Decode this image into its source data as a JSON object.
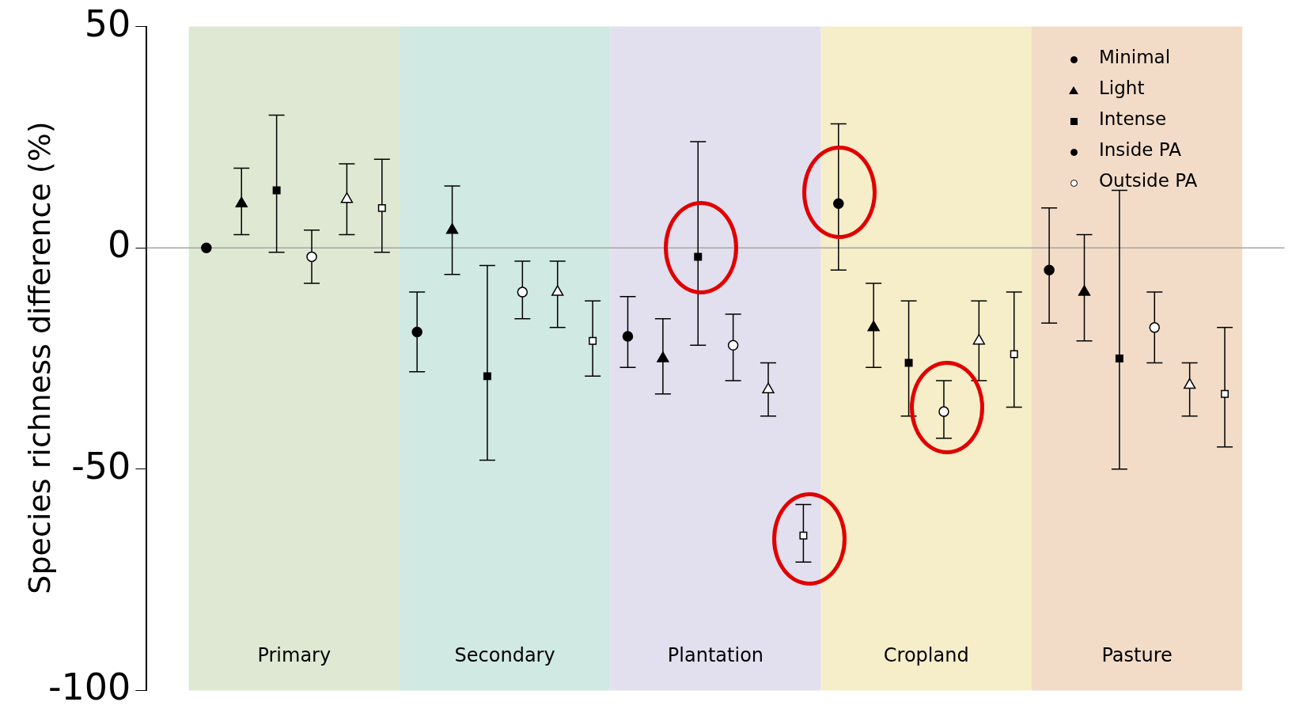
{
  "chart_data": {
    "type": "scatter",
    "ylabel": "Species richness difference (%)",
    "categories": [
      "Primary",
      "Secondary",
      "Plantation",
      "Cropland",
      "Pasture"
    ],
    "ylim": [
      -100,
      50
    ],
    "yticks": [
      50,
      0,
      -50,
      -100
    ],
    "grid": false,
    "legend": "top right",
    "series": [
      {
        "name": "Minimal",
        "color": "#000000",
        "marker": "circle",
        "values": [
          0,
          -19,
          -20,
          10,
          -5
        ],
        "errors": [
          null,
          [
            -28,
            -10
          ],
          [
            -27,
            -11
          ],
          [
            -5,
            28
          ],
          [
            -17,
            9
          ]
        ]
      },
      {
        "name": "Light",
        "color": "#000000",
        "marker": "triangle",
        "values": [
          10,
          4,
          -25,
          -18,
          -10
        ],
        "errors": [
          [
            3,
            18
          ],
          [
            -6,
            14
          ],
          [
            -33,
            -16
          ],
          [
            -27,
            -8
          ],
          [
            -21,
            3
          ]
        ]
      },
      {
        "name": "Intense",
        "color": "#000000",
        "marker": "square",
        "values": [
          13,
          -29,
          -2,
          -26,
          -25
        ],
        "errors": [
          [
            -1,
            30
          ],
          [
            -48,
            -4
          ],
          [
            -22,
            24
          ],
          [
            -38,
            -12
          ],
          [
            -50,
            13
          ]
        ]
      },
      {
        "name": "Inside PA",
        "color": "#000000",
        "marker": "circle",
        "values": [
          null,
          null,
          null,
          null,
          null
        ]
      },
      {
        "name": "Outside PA",
        "color": "#ffffff",
        "marker": "circle",
        "values": [
          -2,
          -10,
          -22,
          -37,
          -18
        ],
        "errors": [
          [
            -8,
            4
          ],
          [
            -16,
            -3
          ],
          [
            -30,
            -15
          ],
          [
            -43,
            -30
          ],
          [
            -26,
            -10
          ]
        ]
      },
      {
        "color": "#ffffff",
        "marker": "triangle",
        "values": [
          11,
          -10,
          -32,
          -21,
          -31
        ],
        "errors": [
          [
            3,
            19
          ],
          [
            -18,
            -3
          ],
          [
            -38,
            -26
          ],
          [
            -30,
            -12
          ],
          [
            -38,
            -26
          ]
        ]
      },
      {
        "color": "#ffffff",
        "marker": "square",
        "values": [
          9,
          -21,
          -65,
          -24,
          -33
        ],
        "errors": [
          [
            -1,
            20
          ],
          [
            -29,
            -12
          ],
          [
            -71,
            -58
          ],
          [
            -36,
            -10
          ],
          [
            -45,
            -18
          ]
        ]
      }
    ],
    "ref_lines": [
      {
        "axis": "y",
        "value": 0,
        "color": "#a6a6a6"
      }
    ],
    "bands": [
      {
        "axis": "x",
        "from": "Primary",
        "to": "Primary",
        "color": "#dfe8d2"
      },
      {
        "axis": "x",
        "from": "Secondary",
        "to": "Secondary",
        "color": "#d0e9e2"
      },
      {
        "axis": "x",
        "from": "Plantation",
        "to": "Plantation",
        "color": "#e2dfee"
      },
      {
        "axis": "x",
        "from": "Cropland",
        "to": "Cropland",
        "color": "#f6edc9"
      },
      {
        "axis": "x",
        "from": "Pasture",
        "to": "Pasture",
        "color": "#f2dcc8"
      }
    ]
  }
}
